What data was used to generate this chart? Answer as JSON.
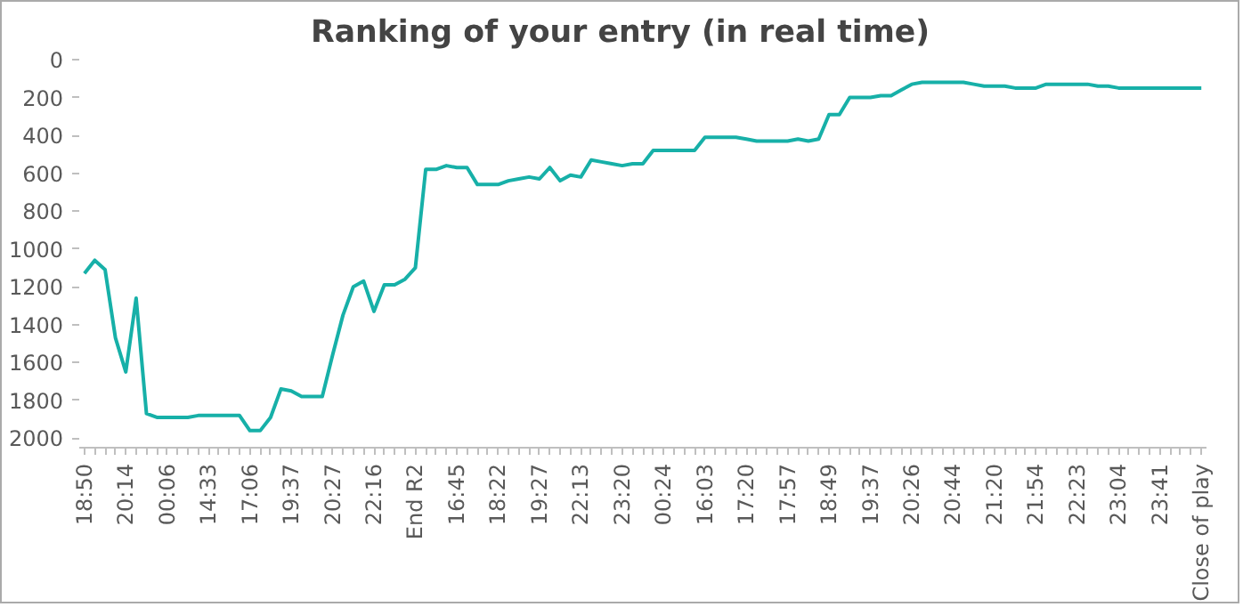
{
  "chart_data": {
    "type": "line",
    "title": "Ranking of your entry (in real time)",
    "categories": [
      "18:50",
      null,
      null,
      null,
      "20:14",
      null,
      null,
      null,
      "00:06",
      null,
      null,
      null,
      "14:33",
      null,
      null,
      null,
      "17:06",
      null,
      null,
      null,
      "19:37",
      null,
      null,
      null,
      "20:27",
      null,
      null,
      null,
      "22:16",
      null,
      null,
      null,
      "End R2",
      null,
      null,
      null,
      "16:45",
      null,
      null,
      null,
      "18:22",
      null,
      null,
      null,
      "19:27",
      null,
      null,
      null,
      "22:13",
      null,
      null,
      null,
      "23:20",
      null,
      null,
      null,
      "00:24",
      null,
      null,
      null,
      "16:03",
      null,
      null,
      null,
      "17:20",
      null,
      null,
      null,
      "17:57",
      null,
      null,
      null,
      "18:49",
      null,
      null,
      null,
      "19:37",
      null,
      null,
      null,
      "20:26",
      null,
      null,
      null,
      "20:44",
      null,
      null,
      null,
      "21:20",
      null,
      null,
      null,
      "21:54",
      null,
      null,
      null,
      "22:23",
      null,
      null,
      null,
      "23:04",
      null,
      null,
      null,
      "23:41",
      null,
      null,
      null,
      "Close of play"
    ],
    "series": [
      {
        "color": "#17b0a8",
        "values": [
          1130,
          1060,
          1110,
          1470,
          1650,
          1260,
          1870,
          1890,
          1890,
          1890,
          1890,
          1880,
          1880,
          1880,
          1880,
          1880,
          1960,
          1960,
          1890,
          1740,
          1750,
          1780,
          1780,
          1780,
          1560,
          1350,
          1200,
          1170,
          1330,
          1190,
          1190,
          1160,
          1100,
          580,
          580,
          560,
          570,
          570,
          660,
          660,
          660,
          640,
          630,
          620,
          630,
          570,
          640,
          610,
          620,
          530,
          540,
          550,
          560,
          550,
          550,
          480,
          480,
          480,
          480,
          480,
          410,
          410,
          410,
          410,
          420,
          430,
          430,
          430,
          430,
          420,
          430,
          420,
          290,
          290,
          200,
          200,
          200,
          190,
          190,
          160,
          130,
          120,
          120,
          120,
          120,
          120,
          130,
          140,
          140,
          140,
          150,
          150,
          150,
          130,
          130,
          130,
          130,
          130,
          140,
          140,
          150,
          150,
          150,
          150,
          150,
          150,
          150,
          150,
          150
        ]
      }
    ],
    "ylim": [
      2050,
      0
    ],
    "yticks": [
      0,
      200,
      400,
      600,
      800,
      1000,
      1200,
      1400,
      1600,
      1800,
      2000
    ],
    "grid": false,
    "marker": "none",
    "line_style": "solid"
  }
}
